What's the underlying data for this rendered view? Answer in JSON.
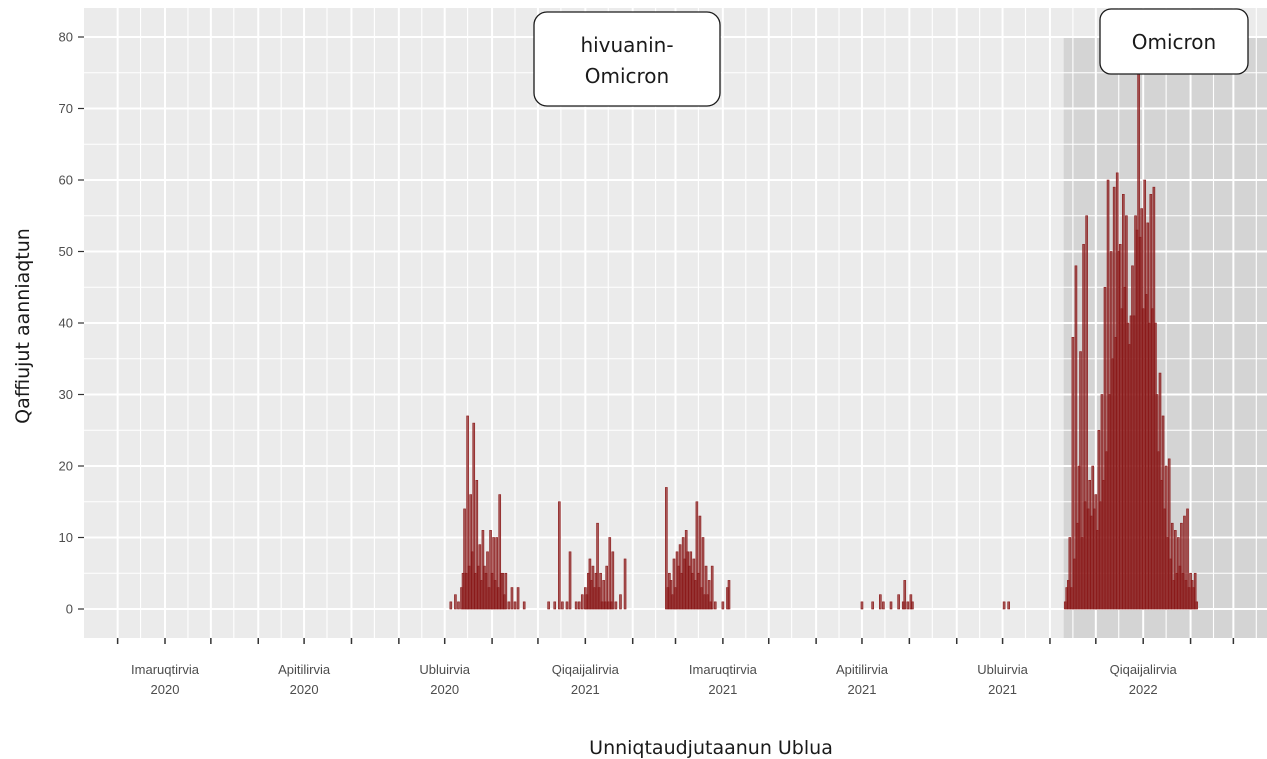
{
  "chart_data": {
    "type": "bar",
    "xlabel": "Unniqtaudjutaanun  Ublua",
    "ylabel": "Qaffiujut  aanniaqtun",
    "ylim": [
      0,
      80
    ],
    "yticks": [
      0,
      10,
      20,
      30,
      40,
      50,
      60,
      70,
      80
    ],
    "xlim": [
      "2020-02-08",
      "2022-03-23"
    ],
    "grid": true,
    "bar_color": "#8b1a1a",
    "x_tick_labels": [
      {
        "date": "2020-04-01",
        "line1": "Imaruqtirvia",
        "line2": "2020"
      },
      {
        "date": "2020-07-01",
        "line1": "Apitilirvia",
        "line2": "2020"
      },
      {
        "date": "2020-10-01",
        "line1": "Ubluirvia",
        "line2": "2020"
      },
      {
        "date": "2021-01-01",
        "line1": "Qiqaijalirvia",
        "line2": "2021"
      },
      {
        "date": "2021-04-01",
        "line1": "Imaruqtirvia",
        "line2": "2021"
      },
      {
        "date": "2021-07-01",
        "line1": "Apitilirvia",
        "line2": "2021"
      },
      {
        "date": "2021-10-01",
        "line1": "Ubluirvia",
        "line2": "2021"
      },
      {
        "date": "2022-01-01",
        "line1": "Qiqaijalirvia",
        "line2": "2022"
      }
    ],
    "shaded_region": {
      "start": "2021-11-10",
      "end": "2022-03-23",
      "label": "Omicron"
    },
    "annotations": [
      {
        "text_line1": "hivuanin-",
        "text_line2": "Omicron",
        "date": "2021-01-01",
        "value": 77
      },
      {
        "text_line1": "Omicron",
        "text_line2": "",
        "date": "2022-01-01",
        "value": 79
      }
    ],
    "series": [
      {
        "values": [
          {
            "x": "2020-10-05",
            "y": 1
          },
          {
            "x": "2020-10-08",
            "y": 2
          },
          {
            "x": "2020-10-10",
            "y": 1
          },
          {
            "x": "2020-10-12",
            "y": 3
          },
          {
            "x": "2020-10-13",
            "y": 5
          },
          {
            "x": "2020-10-14",
            "y": 14
          },
          {
            "x": "2020-10-15",
            "y": 5
          },
          {
            "x": "2020-10-16",
            "y": 27
          },
          {
            "x": "2020-10-17",
            "y": 6
          },
          {
            "x": "2020-10-18",
            "y": 16
          },
          {
            "x": "2020-10-19",
            "y": 8
          },
          {
            "x": "2020-10-20",
            "y": 26
          },
          {
            "x": "2020-10-21",
            "y": 5
          },
          {
            "x": "2020-10-22",
            "y": 18
          },
          {
            "x": "2020-10-23",
            "y": 6
          },
          {
            "x": "2020-10-24",
            "y": 9
          },
          {
            "x": "2020-10-25",
            "y": 4
          },
          {
            "x": "2020-10-26",
            "y": 11
          },
          {
            "x": "2020-10-27",
            "y": 6
          },
          {
            "x": "2020-10-28",
            "y": 5
          },
          {
            "x": "2020-10-29",
            "y": 8
          },
          {
            "x": "2020-10-30",
            "y": 3
          },
          {
            "x": "2020-10-31",
            "y": 11
          },
          {
            "x": "2020-11-01",
            "y": 5
          },
          {
            "x": "2020-11-02",
            "y": 10
          },
          {
            "x": "2020-11-03",
            "y": 4
          },
          {
            "x": "2020-11-04",
            "y": 10
          },
          {
            "x": "2020-11-05",
            "y": 3
          },
          {
            "x": "2020-11-06",
            "y": 16
          },
          {
            "x": "2020-11-07",
            "y": 5
          },
          {
            "x": "2020-11-08",
            "y": 5
          },
          {
            "x": "2020-11-09",
            "y": 2
          },
          {
            "x": "2020-11-10",
            "y": 5
          },
          {
            "x": "2020-11-12",
            "y": 1
          },
          {
            "x": "2020-11-14",
            "y": 3
          },
          {
            "x": "2020-11-16",
            "y": 1
          },
          {
            "x": "2020-11-18",
            "y": 3
          },
          {
            "x": "2020-11-22",
            "y": 1
          },
          {
            "x": "2020-12-08",
            "y": 1
          },
          {
            "x": "2020-12-12",
            "y": 1
          },
          {
            "x": "2020-12-15",
            "y": 15
          },
          {
            "x": "2020-12-17",
            "y": 1
          },
          {
            "x": "2020-12-20",
            "y": 1
          },
          {
            "x": "2020-12-22",
            "y": 8
          },
          {
            "x": "2020-12-26",
            "y": 1
          },
          {
            "x": "2020-12-28",
            "y": 1
          },
          {
            "x": "2020-12-30",
            "y": 2
          },
          {
            "x": "2021-01-01",
            "y": 3
          },
          {
            "x": "2021-01-02",
            "y": 2
          },
          {
            "x": "2021-01-03",
            "y": 5
          },
          {
            "x": "2021-01-04",
            "y": 7
          },
          {
            "x": "2021-01-05",
            "y": 4
          },
          {
            "x": "2021-01-06",
            "y": 6
          },
          {
            "x": "2021-01-07",
            "y": 3
          },
          {
            "x": "2021-01-08",
            "y": 5
          },
          {
            "x": "2021-01-09",
            "y": 12
          },
          {
            "x": "2021-01-10",
            "y": 3
          },
          {
            "x": "2021-01-11",
            "y": 5
          },
          {
            "x": "2021-01-12",
            "y": 1
          },
          {
            "x": "2021-01-13",
            "y": 4
          },
          {
            "x": "2021-01-14",
            "y": 1
          },
          {
            "x": "2021-01-15",
            "y": 6
          },
          {
            "x": "2021-01-16",
            "y": 1
          },
          {
            "x": "2021-01-17",
            "y": 10
          },
          {
            "x": "2021-01-18",
            "y": 1
          },
          {
            "x": "2021-01-19",
            "y": 8
          },
          {
            "x": "2021-01-21",
            "y": 1
          },
          {
            "x": "2021-01-24",
            "y": 2
          },
          {
            "x": "2021-01-27",
            "y": 7
          },
          {
            "x": "2021-02-23",
            "y": 17
          },
          {
            "x": "2021-02-24",
            "y": 3
          },
          {
            "x": "2021-02-25",
            "y": 5
          },
          {
            "x": "2021-02-26",
            "y": 4
          },
          {
            "x": "2021-02-27",
            "y": 2
          },
          {
            "x": "2021-02-28",
            "y": 7
          },
          {
            "x": "2021-03-01",
            "y": 3
          },
          {
            "x": "2021-03-02",
            "y": 8
          },
          {
            "x": "2021-03-03",
            "y": 6
          },
          {
            "x": "2021-03-04",
            "y": 9
          },
          {
            "x": "2021-03-05",
            "y": 5
          },
          {
            "x": "2021-03-06",
            "y": 10
          },
          {
            "x": "2021-03-07",
            "y": 7
          },
          {
            "x": "2021-03-08",
            "y": 11
          },
          {
            "x": "2021-03-09",
            "y": 8
          },
          {
            "x": "2021-03-10",
            "y": 6
          },
          {
            "x": "2021-03-11",
            "y": 8
          },
          {
            "x": "2021-03-12",
            "y": 5
          },
          {
            "x": "2021-03-13",
            "y": 7
          },
          {
            "x": "2021-03-14",
            "y": 4
          },
          {
            "x": "2021-03-15",
            "y": 15
          },
          {
            "x": "2021-03-16",
            "y": 5
          },
          {
            "x": "2021-03-17",
            "y": 13
          },
          {
            "x": "2021-03-18",
            "y": 3
          },
          {
            "x": "2021-03-19",
            "y": 10
          },
          {
            "x": "2021-03-20",
            "y": 2
          },
          {
            "x": "2021-03-21",
            "y": 6
          },
          {
            "x": "2021-03-22",
            "y": 2
          },
          {
            "x": "2021-03-23",
            "y": 4
          },
          {
            "x": "2021-03-24",
            "y": 1
          },
          {
            "x": "2021-03-25",
            "y": 6
          },
          {
            "x": "2021-03-27",
            "y": 1
          },
          {
            "x": "2021-04-01",
            "y": 1
          },
          {
            "x": "2021-04-04",
            "y": 3
          },
          {
            "x": "2021-04-05",
            "y": 4
          },
          {
            "x": "2021-07-01",
            "y": 1
          },
          {
            "x": "2021-07-08",
            "y": 1
          },
          {
            "x": "2021-07-13",
            "y": 2
          },
          {
            "x": "2021-07-15",
            "y": 1
          },
          {
            "x": "2021-07-20",
            "y": 1
          },
          {
            "x": "2021-07-25",
            "y": 2
          },
          {
            "x": "2021-07-28",
            "y": 1
          },
          {
            "x": "2021-07-29",
            "y": 4
          },
          {
            "x": "2021-07-31",
            "y": 1
          },
          {
            "x": "2021-08-02",
            "y": 2
          },
          {
            "x": "2021-08-03",
            "y": 1
          },
          {
            "x": "2021-10-02",
            "y": 1
          },
          {
            "x": "2021-10-05",
            "y": 1
          },
          {
            "x": "2021-11-11",
            "y": 1
          },
          {
            "x": "2021-11-12",
            "y": 3
          },
          {
            "x": "2021-11-13",
            "y": 4
          },
          {
            "x": "2021-11-14",
            "y": 10
          },
          {
            "x": "2021-11-15",
            "y": 3
          },
          {
            "x": "2021-11-16",
            "y": 38
          },
          {
            "x": "2021-11-17",
            "y": 7
          },
          {
            "x": "2021-11-18",
            "y": 48
          },
          {
            "x": "2021-11-19",
            "y": 12
          },
          {
            "x": "2021-11-20",
            "y": 20
          },
          {
            "x": "2021-11-21",
            "y": 36
          },
          {
            "x": "2021-11-22",
            "y": 10
          },
          {
            "x": "2021-11-23",
            "y": 51
          },
          {
            "x": "2021-11-24",
            "y": 15
          },
          {
            "x": "2021-11-25",
            "y": 55
          },
          {
            "x": "2021-11-26",
            "y": 14
          },
          {
            "x": "2021-11-27",
            "y": 18
          },
          {
            "x": "2021-11-28",
            "y": 13
          },
          {
            "x": "2021-11-29",
            "y": 20
          },
          {
            "x": "2021-11-30",
            "y": 14
          },
          {
            "x": "2021-12-01",
            "y": 16
          },
          {
            "x": "2021-12-02",
            "y": 11
          },
          {
            "x": "2021-12-03",
            "y": 25
          },
          {
            "x": "2021-12-04",
            "y": 15
          },
          {
            "x": "2021-12-05",
            "y": 30
          },
          {
            "x": "2021-12-06",
            "y": 18
          },
          {
            "x": "2021-12-07",
            "y": 45
          },
          {
            "x": "2021-12-08",
            "y": 22
          },
          {
            "x": "2021-12-09",
            "y": 60
          },
          {
            "x": "2021-12-10",
            "y": 30
          },
          {
            "x": "2021-12-11",
            "y": 50
          },
          {
            "x": "2021-12-12",
            "y": 35
          },
          {
            "x": "2021-12-13",
            "y": 59
          },
          {
            "x": "2021-12-14",
            "y": 38
          },
          {
            "x": "2021-12-15",
            "y": 61
          },
          {
            "x": "2021-12-16",
            "y": 50
          },
          {
            "x": "2021-12-17",
            "y": 51
          },
          {
            "x": "2021-12-18",
            "y": 42
          },
          {
            "x": "2021-12-19",
            "y": 58
          },
          {
            "x": "2021-12-20",
            "y": 45
          },
          {
            "x": "2021-12-21",
            "y": 55
          },
          {
            "x": "2021-12-22",
            "y": 40
          },
          {
            "x": "2021-12-23",
            "y": 37
          },
          {
            "x": "2021-12-24",
            "y": 41
          },
          {
            "x": "2021-12-25",
            "y": 48
          },
          {
            "x": "2021-12-26",
            "y": 41
          },
          {
            "x": "2021-12-27",
            "y": 55
          },
          {
            "x": "2021-12-28",
            "y": 53
          },
          {
            "x": "2021-12-29",
            "y": 75
          },
          {
            "x": "2021-12-30",
            "y": 52
          },
          {
            "x": "2021-12-31",
            "y": 56
          },
          {
            "x": "2022-01-01",
            "y": 42
          },
          {
            "x": "2022-01-02",
            "y": 60
          },
          {
            "x": "2022-01-03",
            "y": 44
          },
          {
            "x": "2022-01-04",
            "y": 54
          },
          {
            "x": "2022-01-05",
            "y": 40
          },
          {
            "x": "2022-01-06",
            "y": 58
          },
          {
            "x": "2022-01-07",
            "y": 42
          },
          {
            "x": "2022-01-08",
            "y": 59
          },
          {
            "x": "2022-01-09",
            "y": 40
          },
          {
            "x": "2022-01-10",
            "y": 30
          },
          {
            "x": "2022-01-11",
            "y": 22
          },
          {
            "x": "2022-01-12",
            "y": 33
          },
          {
            "x": "2022-01-13",
            "y": 18
          },
          {
            "x": "2022-01-14",
            "y": 27
          },
          {
            "x": "2022-01-15",
            "y": 14
          },
          {
            "x": "2022-01-16",
            "y": 20
          },
          {
            "x": "2022-01-17",
            "y": 10
          },
          {
            "x": "2022-01-18",
            "y": 21
          },
          {
            "x": "2022-01-19",
            "y": 7
          },
          {
            "x": "2022-01-20",
            "y": 12
          },
          {
            "x": "2022-01-21",
            "y": 4
          },
          {
            "x": "2022-01-22",
            "y": 11
          },
          {
            "x": "2022-01-23",
            "y": 5
          },
          {
            "x": "2022-01-24",
            "y": 10
          },
          {
            "x": "2022-01-25",
            "y": 6
          },
          {
            "x": "2022-01-26",
            "y": 12
          },
          {
            "x": "2022-01-27",
            "y": 5
          },
          {
            "x": "2022-01-28",
            "y": 13
          },
          {
            "x": "2022-01-29",
            "y": 4
          },
          {
            "x": "2022-01-30",
            "y": 14
          },
          {
            "x": "2022-01-31",
            "y": 3
          },
          {
            "x": "2022-02-01",
            "y": 5
          },
          {
            "x": "2022-02-02",
            "y": 4
          },
          {
            "x": "2022-02-03",
            "y": 3
          },
          {
            "x": "2022-02-04",
            "y": 5
          },
          {
            "x": "2022-02-05",
            "y": 1
          }
        ]
      }
    ]
  }
}
